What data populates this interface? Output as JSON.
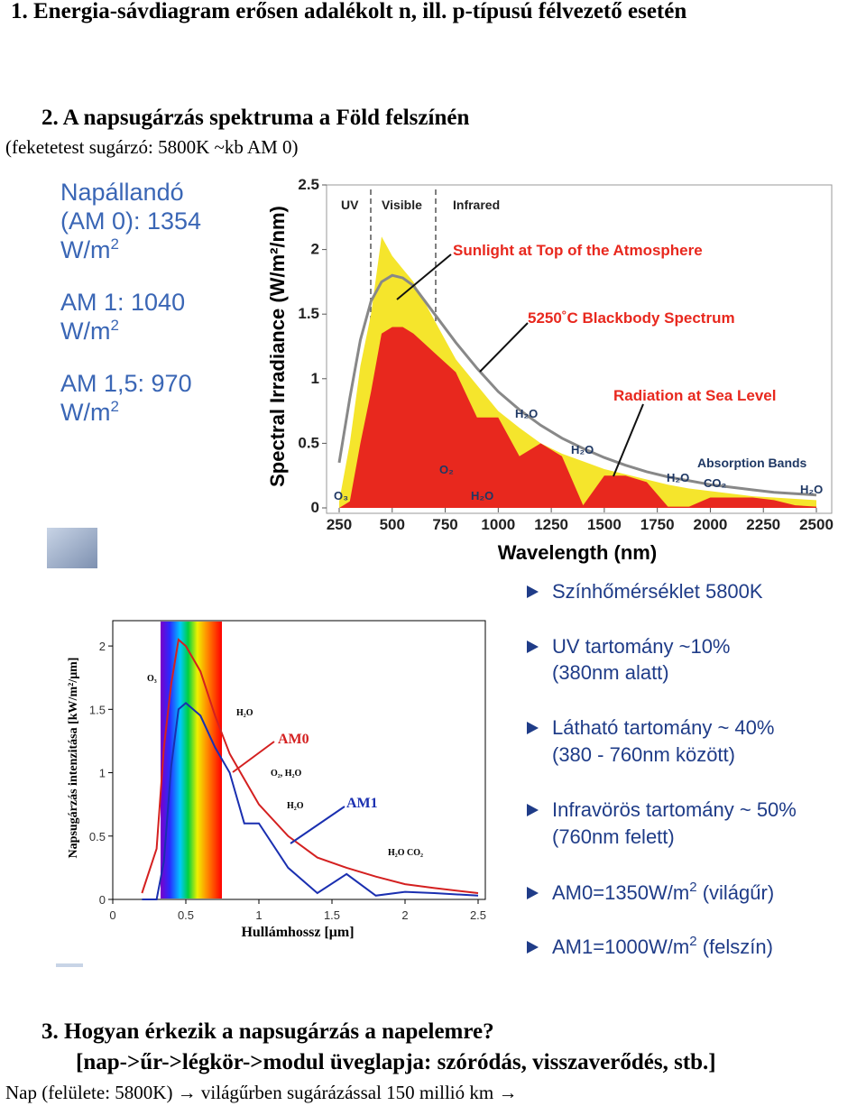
{
  "heading1": "1.  Energia-sávdiagram erősen adalékolt n, ill. p-típusú félvezető esetén",
  "heading2": "2.  A napsugárzás spektruma a Föld felszínén",
  "subtitle2": "(feketetest sugárzó: 5800K ~kb AM 0)",
  "side_notes": [
    {
      "lines": [
        "Napállandó",
        "(AM 0): 1354",
        "W/m"
      ],
      "sup": "2"
    },
    {
      "lines": [
        "AM 1: 1040",
        "W/m"
      ],
      "sup": "2"
    },
    {
      "lines": [
        "AM 1,5: 970",
        "W/m"
      ],
      "sup": "2"
    }
  ],
  "bullets": [
    {
      "lines": [
        "Színhőmérséklet 5800K"
      ]
    },
    {
      "lines": [
        "UV tartomány ~10%",
        "(380nm alatt)"
      ]
    },
    {
      "lines": [
        "Látható tartomány ~ 40%",
        "(380 - 760nm között)"
      ]
    },
    {
      "lines": [
        "Infravörös tartomány ~ 50%",
        "(760nm felett)"
      ]
    },
    {
      "parts": [
        "AM0=1350W/m",
        "2",
        " (világűr)"
      ]
    },
    {
      "parts": [
        "AM1=1000W/m",
        "2",
        " (felszín)"
      ]
    }
  ],
  "heading3": "3.  Hogyan érkezik a napsugárzás a napelemre?",
  "line3b": "[nap->űr->légkör->modul üveglapja: szóródás, visszaverődés, stb.]",
  "line3c": "Nap (felülete: 5800K) → világűrben sugárázással 150 millió km →",
  "chart_data": [
    {
      "type": "area",
      "x_label": "Wavelength (nm)",
      "y_label": "Spectral Irradiance (W/m²/nm)",
      "xlim": [
        250,
        2500
      ],
      "xticks": [
        250,
        500,
        750,
        1000,
        1250,
        1500,
        1750,
        2000,
        2250,
        2500
      ],
      "ylim": [
        0,
        2.5
      ],
      "yticks": [
        0,
        0.5,
        1,
        1.5,
        2,
        2.5
      ],
      "grid": false,
      "x": [
        250,
        300,
        350,
        400,
        450,
        500,
        550,
        600,
        700,
        800,
        900,
        1000,
        1100,
        1200,
        1300,
        1400,
        1500,
        1600,
        1700,
        1800,
        1900,
        2000,
        2100,
        2200,
        2300,
        2400,
        2500
      ],
      "series": [
        {
          "name": "Sunlight at Top of the Atmosphere",
          "color": "#f5e52c",
          "style": "area",
          "values": [
            0.05,
            0.5,
            1.1,
            1.5,
            2.1,
            1.95,
            1.85,
            1.75,
            1.45,
            1.15,
            0.95,
            0.75,
            0.62,
            0.5,
            0.42,
            0.36,
            0.3,
            0.26,
            0.22,
            0.18,
            0.15,
            0.13,
            0.11,
            0.09,
            0.08,
            0.07,
            0.06
          ]
        },
        {
          "name": "Radiation at Sea Level",
          "color": "#e8281e",
          "style": "area",
          "values": [
            0,
            0.05,
            0.5,
            0.9,
            1.35,
            1.4,
            1.4,
            1.35,
            1.2,
            1.05,
            0.7,
            0.7,
            0.4,
            0.5,
            0.4,
            0.02,
            0.25,
            0.25,
            0.2,
            0.01,
            0.01,
            0.08,
            0.08,
            0.08,
            0.06,
            0.02,
            0.01
          ]
        },
        {
          "name": "5250˚C Blackbody Spectrum",
          "color": "#888888",
          "style": "line",
          "values": [
            0.35,
            0.85,
            1.3,
            1.6,
            1.75,
            1.8,
            1.78,
            1.72,
            1.5,
            1.28,
            1.08,
            0.9,
            0.76,
            0.64,
            0.54,
            0.46,
            0.39,
            0.33,
            0.28,
            0.24,
            0.21,
            0.18,
            0.16,
            0.14,
            0.12,
            0.11,
            0.1
          ]
        }
      ],
      "annotations": [
        "UV",
        "Visible",
        "Infrared",
        "Sunlight at Top of the Atmosphere",
        "5250˚C Blackbody Spectrum",
        "Radiation at Sea Level",
        "Absorption Bands",
        "O₃",
        "O₂",
        "H₂O",
        "H₂O",
        "H₂O",
        "H₂O",
        "CO₂",
        "H₂O"
      ]
    },
    {
      "type": "line",
      "x_label": "Hullámhossz [μm]",
      "y_label": "Napsugárzás intenzitása [kW/m²/μm]",
      "xlim": [
        0,
        2.5
      ],
      "xticks": [
        0,
        0.5,
        1,
        1.5,
        2,
        2.5
      ],
      "ylim": [
        0,
        2.2
      ],
      "yticks": [
        0,
        0.5,
        1,
        1.5,
        2
      ],
      "grid": false,
      "x": [
        0.2,
        0.3,
        0.35,
        0.4,
        0.45,
        0.5,
        0.55,
        0.6,
        0.7,
        0.8,
        0.9,
        1.0,
        1.2,
        1.4,
        1.6,
        1.8,
        2.0,
        2.2,
        2.5
      ],
      "series": [
        {
          "name": "AM0",
          "color": "#d42020",
          "style": "line",
          "values": [
            0.05,
            0.4,
            1.2,
            1.7,
            2.05,
            2.0,
            1.9,
            1.8,
            1.45,
            1.15,
            0.95,
            0.75,
            0.5,
            0.33,
            0.25,
            0.18,
            0.12,
            0.09,
            0.05
          ]
        },
        {
          "name": "AM1",
          "color": "#1a2fb0",
          "style": "line",
          "values": [
            0,
            0,
            0.3,
            1.05,
            1.5,
            1.55,
            1.5,
            1.45,
            1.2,
            1.0,
            0.6,
            0.6,
            0.25,
            0.05,
            0.2,
            0.03,
            0.06,
            0.05,
            0.03
          ]
        }
      ],
      "annotations": [
        "O₃",
        "H₂O",
        "O₂, H₂O",
        "H₂O",
        "H₂O CO₂"
      ]
    }
  ]
}
